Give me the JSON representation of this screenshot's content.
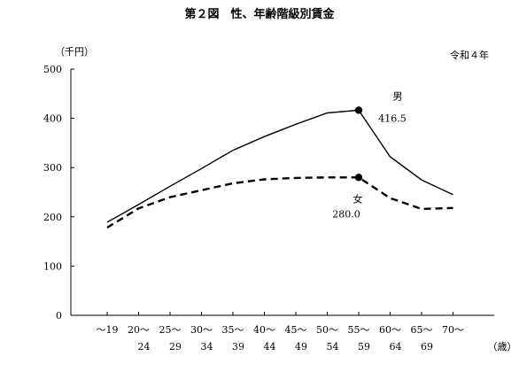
{
  "chart_data": {
    "type": "line",
    "title": "第２図　性、年齢階級別賃金",
    "subtitle": "令和４年",
    "ylabel": "（千円）",
    "xlabel": "（歳）",
    "ylim": [
      0,
      500
    ],
    "yticks": [
      0,
      100,
      200,
      300,
      400,
      500
    ],
    "grid": false,
    "categories": [
      {
        "line1": "～19",
        "line2": ""
      },
      {
        "line1": "20～",
        "line2": "24"
      },
      {
        "line1": "25～",
        "line2": "29"
      },
      {
        "line1": "30～",
        "line2": "34"
      },
      {
        "line1": "35～",
        "line2": "39"
      },
      {
        "line1": "40～",
        "line2": "44"
      },
      {
        "line1": "45～",
        "line2": "49"
      },
      {
        "line1": "50～",
        "line2": "54"
      },
      {
        "line1": "55～",
        "line2": "59"
      },
      {
        "line1": "60～",
        "line2": "64"
      },
      {
        "line1": "65～",
        "line2": "69"
      },
      {
        "line1": "70～",
        "line2": ""
      }
    ],
    "series": [
      {
        "name": "男",
        "style": "solid",
        "color": "#000000",
        "values": [
          189,
          225,
          262,
          298,
          335,
          363,
          388,
          411,
          416.5,
          322,
          275,
          245
        ],
        "highlight_index": 8,
        "highlight_label": "416.5"
      },
      {
        "name": "女",
        "style": "dashed",
        "color": "#000000",
        "values": [
          178,
          217,
          240,
          254,
          268,
          276,
          279,
          280,
          280.0,
          238,
          216,
          218
        ],
        "highlight_index": 8,
        "highlight_label": "280.0"
      }
    ]
  }
}
